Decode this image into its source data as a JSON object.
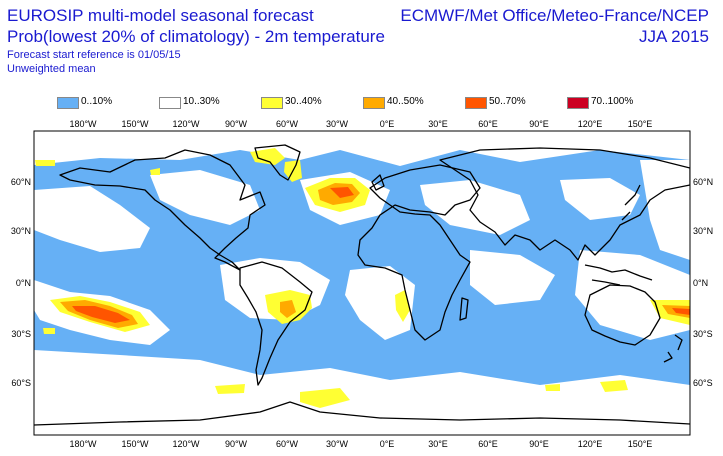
{
  "header": {
    "title_line1": "EUROSIP multi-model seasonal forecast",
    "title_line2": "Prob(lowest 20% of climatology) - 2m temperature",
    "subtitle_line1": "Forecast start reference is 01/05/15",
    "subtitle_line2": "Unweighted mean",
    "centres": "ECMWF/Met Office/Meteo-France/NCEP",
    "season": "JJA 2015"
  },
  "legend": [
    {
      "label": "0..10%",
      "color": "#66b0f5"
    },
    {
      "label": "10..30%",
      "color": "#ffffff"
    },
    {
      "label": "30..40%",
      "color": "#ffff33"
    },
    {
      "label": "40..50%",
      "color": "#ffaa00"
    },
    {
      "label": "50..70%",
      "color": "#ff5500"
    },
    {
      "label": "70..100%",
      "color": "#cc0022"
    }
  ],
  "axes": {
    "lon_ticks": [
      "180°W",
      "150°W",
      "120°W",
      "90°W",
      "60°W",
      "30°W",
      "0°E",
      "30°E",
      "60°E",
      "90°E",
      "120°E",
      "150°E"
    ],
    "lat_ticks": [
      "60°N",
      "30°N",
      "0°N",
      "30°S",
      "60°S"
    ]
  }
}
